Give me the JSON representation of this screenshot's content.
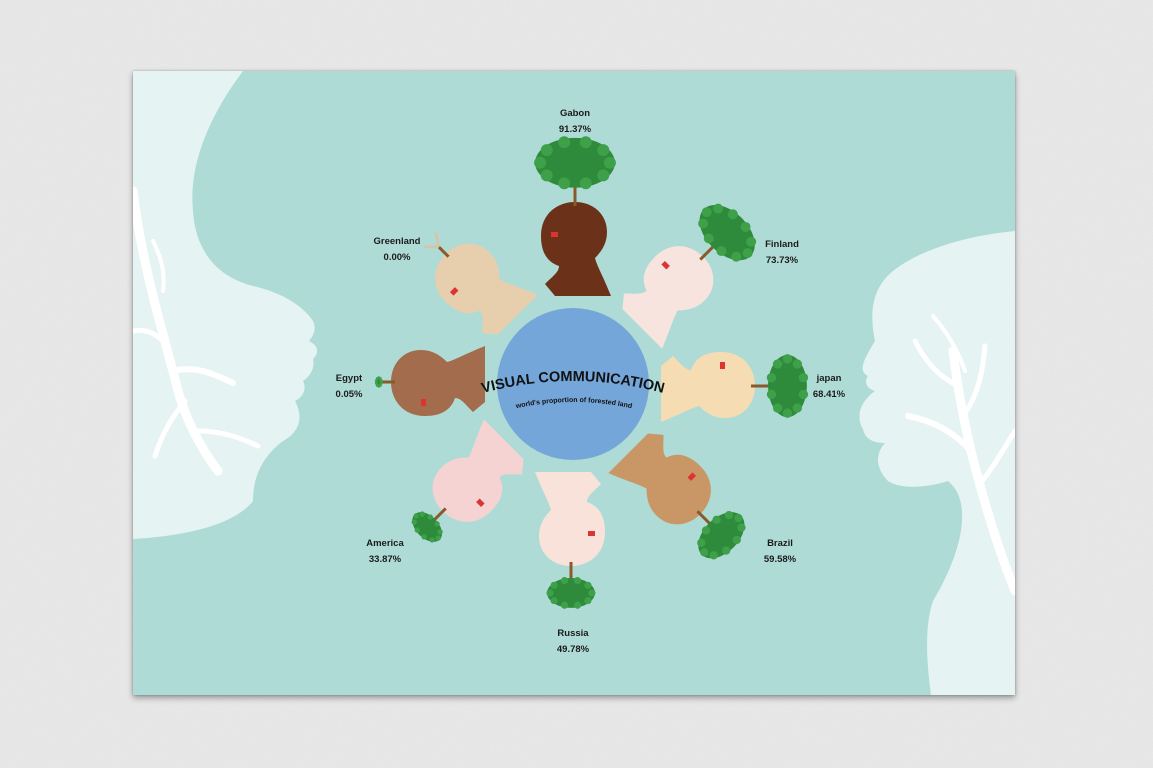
{
  "poster": {
    "title": "VISUAL COMMUNICATION",
    "subtitle": "world's proportion of forested land"
  },
  "countries": [
    {
      "name": "Gabon",
      "value": "91.37%",
      "forest_pct": 91.37,
      "skin": "#6b3219"
    },
    {
      "name": "Finland",
      "value": "73.73%",
      "forest_pct": 73.73,
      "skin": "#f7e4df"
    },
    {
      "name": "japan",
      "value": "68.41%",
      "forest_pct": 68.41,
      "skin": "#f5dcb2"
    },
    {
      "name": "Brazil",
      "value": "59.58%",
      "forest_pct": 59.58,
      "skin": "#c99765"
    },
    {
      "name": "Russia",
      "value": "49.78%",
      "forest_pct": 49.78,
      "skin": "#f8e2da"
    },
    {
      "name": "America",
      "value": "33.87%",
      "forest_pct": 33.87,
      "skin": "#f5d3d2"
    },
    {
      "name": "Egypt",
      "value": "0.05%",
      "forest_pct": 0.05,
      "skin": "#a36c4c"
    },
    {
      "name": "Greenland",
      "value": "0.00%",
      "forest_pct": 0.0,
      "skin": "#e7cfae"
    }
  ],
  "colors": {
    "background": "#afdbd7",
    "globe": "#74a6d9",
    "tree": "#2e8b3c",
    "silhouette": "#e6f3f3",
    "branch": "#ffffff",
    "wall": "#e9e9ea"
  }
}
